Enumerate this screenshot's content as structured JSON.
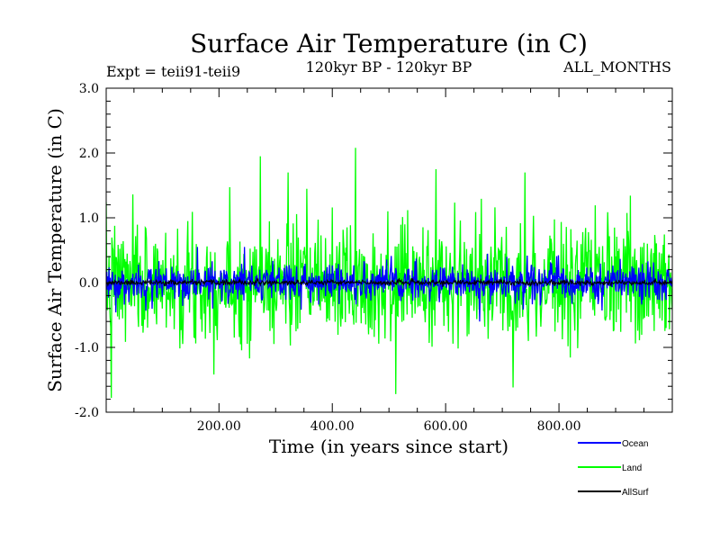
{
  "chart_data": {
    "type": "line",
    "title": "Surface Air Temperature (in C)",
    "subtitle_left": "Expt = teii91-teii9",
    "subtitle_center": "120kyr BP - 120kyr BP",
    "subtitle_right": "ALL_MONTHS",
    "xlabel": "Time (in years since start)",
    "ylabel": "Surface Air Temperature (in C)",
    "xlim": [
      1,
      1000
    ],
    "ylim": [
      -2.0,
      3.0
    ],
    "x_ticks": [
      {
        "value": 200,
        "label": "200.00"
      },
      {
        "value": 400,
        "label": "400.00"
      },
      {
        "value": 600,
        "label": "600.00"
      },
      {
        "value": 800,
        "label": "800.00"
      }
    ],
    "y_ticks": [
      {
        "value": -2.0,
        "label": "-2.0"
      },
      {
        "value": -1.0,
        "label": "-1.0"
      },
      {
        "value": 0.0,
        "label": "0.0"
      },
      {
        "value": 1.0,
        "label": "1.0"
      },
      {
        "value": 2.0,
        "label": "2.0"
      },
      {
        "value": 3.0,
        "label": "3.0"
      }
    ],
    "legend_position": "bottom-right",
    "series": [
      {
        "name": "Land",
        "color": "#00ff00",
        "std": 0.45,
        "seed": 7,
        "spikes": [
          [
            273,
            1.95
          ],
          [
            441,
            2.08
          ],
          [
            322,
            1.7
          ],
          [
            583,
            1.75
          ],
          [
            740,
            1.7
          ],
          [
            10,
            -1.78
          ],
          [
            512,
            -1.72
          ]
        ]
      },
      {
        "name": "Ocean",
        "color": "#0000ff",
        "std": 0.15,
        "seed": 3,
        "spikes": [
          [
            162,
            0.55
          ],
          [
            245,
            0.55
          ],
          [
            660,
            -0.6
          ]
        ]
      },
      {
        "name": "AllSurf",
        "color": "#000000",
        "std": 0.02,
        "seed": 11,
        "spikes": []
      }
    ]
  }
}
